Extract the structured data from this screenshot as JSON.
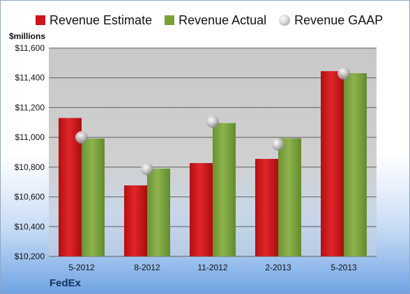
{
  "chart_data": {
    "type": "bar",
    "categories": [
      "5-2012",
      "8-2012",
      "11-2012",
      "2-2013",
      "5-2013"
    ],
    "series": [
      {
        "name": "Revenue Estimate",
        "kind": "bar",
        "color": "#cc1518",
        "values": [
          11130,
          10677,
          10827,
          10855,
          11445
        ]
      },
      {
        "name": "Revenue Actual",
        "kind": "bar",
        "color": "#79a03b",
        "values": [
          10992,
          10790,
          11096,
          10994,
          11431
        ]
      },
      {
        "name": "Revenue GAAP",
        "kind": "marker",
        "color": "#b8b8b8",
        "values": [
          11000,
          10787,
          11105,
          10953,
          11430
        ]
      }
    ],
    "ylabel": "$millions",
    "yticks": [
      10200,
      10400,
      10600,
      10800,
      11000,
      11200,
      11400,
      11600
    ],
    "ytick_labels": [
      "$10,200",
      "$10,400",
      "$10,600",
      "$10,800",
      "$11,000",
      "$11,200",
      "$11,400",
      "$11,600"
    ],
    "ylim": [
      10200,
      11600
    ],
    "grid": true,
    "legend_position": "top"
  },
  "company_label": "FedEx",
  "colors": {
    "plot_background": "#c6c6c6",
    "gridline": "#5f5f5f"
  }
}
